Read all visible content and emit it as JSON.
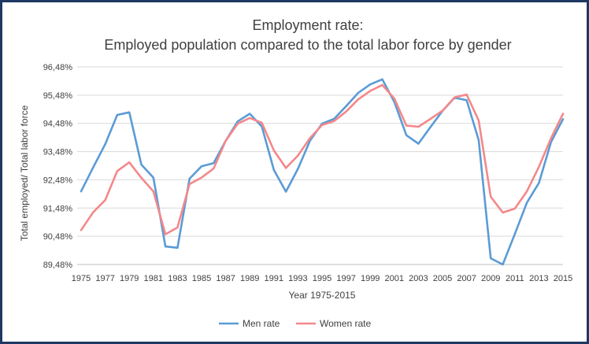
{
  "chart_data": {
    "type": "line",
    "title_lines": [
      "Employment rate:",
      "Employed population compared to the total labor force by gender"
    ],
    "xlabel": "Year 1975-2015",
    "ylabel": "Total employed/ Total labor force",
    "ylim": [
      89.48,
      96.48
    ],
    "y_ticks": [
      89.48,
      90.48,
      91.48,
      92.48,
      93.48,
      94.48,
      95.48,
      96.48
    ],
    "y_tick_labels": [
      "89,48%",
      "90,48%",
      "91,48%",
      "92,48%",
      "93,48%",
      "94,48%",
      "95,48%",
      "96,48%"
    ],
    "x": [
      1975,
      1976,
      1977,
      1978,
      1979,
      1980,
      1981,
      1982,
      1983,
      1984,
      1985,
      1986,
      1987,
      1988,
      1989,
      1990,
      1991,
      1992,
      1993,
      1994,
      1995,
      1996,
      1997,
      1998,
      1999,
      2000,
      2001,
      2002,
      2003,
      2004,
      2005,
      2006,
      2007,
      2008,
      2009,
      2010,
      2011,
      2012,
      2013,
      2014,
      2015
    ],
    "x_tick_labels": [
      "1975",
      "1977",
      "1979",
      "1981",
      "1983",
      "1985",
      "1987",
      "1989",
      "1991",
      "1993",
      "1995",
      "1997",
      "1999",
      "2001",
      "2003",
      "2005",
      "2007",
      "2009",
      "2011",
      "2013",
      "2015"
    ],
    "grid": true,
    "legend_position": "bottom",
    "series": [
      {
        "name": "Men rate",
        "color": "#5b9bd5",
        "values": [
          92.07,
          92.92,
          93.74,
          94.78,
          94.87,
          93.02,
          92.56,
          90.12,
          90.07,
          92.52,
          92.96,
          93.07,
          93.86,
          94.55,
          94.82,
          94.37,
          92.83,
          92.06,
          92.87,
          93.87,
          94.47,
          94.64,
          95.09,
          95.56,
          95.86,
          96.04,
          95.24,
          94.06,
          93.76,
          94.35,
          94.92,
          95.39,
          95.3,
          93.89,
          89.7,
          89.48,
          90.56,
          91.67,
          92.37,
          93.81,
          94.63
        ]
      },
      {
        "name": "Women rate",
        "color": "#f4888a",
        "values": [
          90.7,
          91.33,
          91.76,
          92.79,
          93.1,
          92.55,
          92.07,
          90.55,
          90.79,
          92.33,
          92.56,
          92.88,
          93.86,
          94.47,
          94.67,
          94.5,
          93.52,
          92.9,
          93.34,
          93.96,
          94.42,
          94.56,
          94.9,
          95.33,
          95.63,
          95.84,
          95.36,
          94.4,
          94.36,
          94.64,
          94.93,
          95.4,
          95.5,
          94.58,
          91.88,
          91.32,
          91.46,
          92.07,
          92.94,
          93.95,
          94.82
        ]
      }
    ]
  }
}
